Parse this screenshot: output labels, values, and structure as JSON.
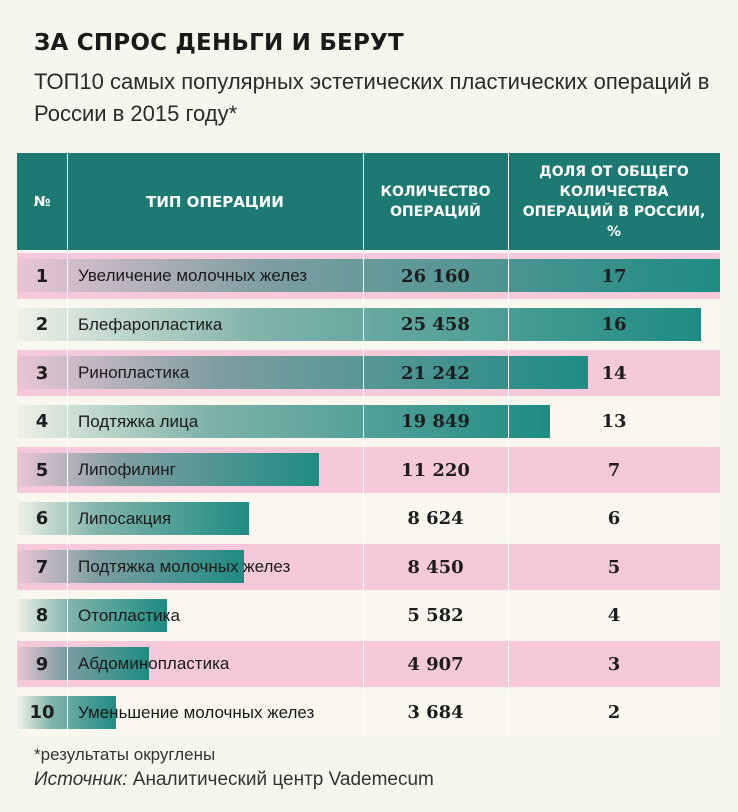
{
  "title": "ЗА СПРОС ДЕНЬГИ И БЕРУТ",
  "subtitle": "ТОП10 самых популярных эстетических пластических операций в России в 2015 году*",
  "footnote": "*результаты округлены",
  "source_label": "Источник:",
  "source_text": " Аналитический центр Vademecum",
  "colors": {
    "header": "#1d7a73",
    "pink_row": "#f5c9da",
    "white_row": "#faf8ee",
    "bar": "#1e8c82"
  },
  "chart_data": {
    "type": "table",
    "columns": [
      "№",
      "ТИП ОПЕРАЦИИ",
      "КОЛИЧЕСТВО ОПЕРАЦИЙ",
      "ДОЛЯ ОТ ОБЩЕГО КОЛИЧЕСТВА ОПЕРАЦИЙ В РОССИИ, %"
    ],
    "rows": [
      {
        "rank": "1",
        "name": "Увеличение молочных желез",
        "count": "26 160",
        "value": 26160,
        "share": "17"
      },
      {
        "rank": "2",
        "name": "Блефаропластика",
        "count": "25 458",
        "value": 25458,
        "share": "16"
      },
      {
        "rank": "3",
        "name": "Ринопластика",
        "count": "21 242",
        "value": 21242,
        "share": "14"
      },
      {
        "rank": "4",
        "name": "Подтяжка лица",
        "count": "19 849",
        "value": 19849,
        "share": "13"
      },
      {
        "rank": "5",
        "name": "Липофилинг",
        "count": "11 220",
        "value": 11220,
        "share": "7"
      },
      {
        "rank": "6",
        "name": "Липосакция",
        "count": "8 624",
        "value": 8624,
        "share": "6"
      },
      {
        "rank": "7",
        "name": "Подтяжка молочных желез",
        "count": "8 450",
        "value": 8450,
        "share": "5"
      },
      {
        "rank": "8",
        "name": "Отопластика",
        "count": "5 582",
        "value": 5582,
        "share": "4"
      },
      {
        "rank": "9",
        "name": "Абдоминопластика",
        "count": "4 907",
        "value": 4907,
        "share": "3"
      },
      {
        "rank": "10",
        "name": "Уменьшение молочных желез",
        "count": "3 684",
        "value": 3684,
        "share": "2"
      }
    ]
  }
}
